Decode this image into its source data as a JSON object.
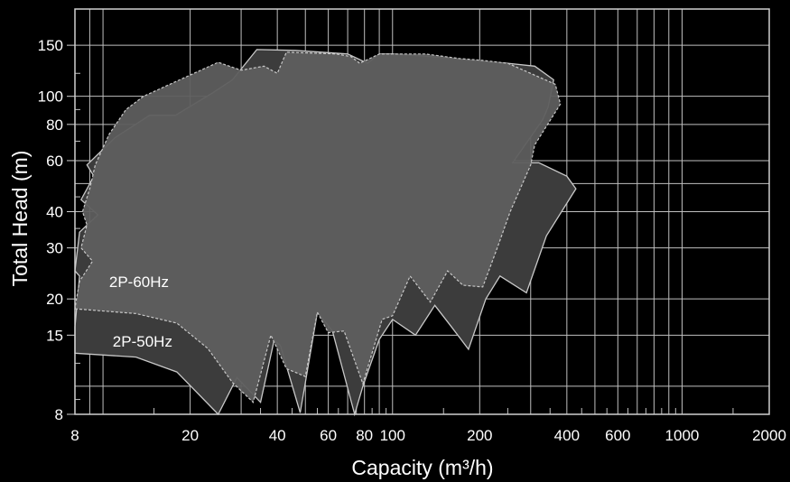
{
  "chart_data": {
    "type": "area",
    "x_scale": "log",
    "y_scale": "log",
    "xlim": [
      8,
      2000
    ],
    "ylim": [
      8,
      200
    ],
    "x_ticks": [
      8,
      20,
      40,
      60,
      80,
      100,
      200,
      400,
      600,
      1000,
      2000
    ],
    "y_ticks": [
      8,
      15,
      20,
      30,
      40,
      60,
      80,
      100,
      150
    ],
    "xlabel": "Capacity (m³/h)",
    "ylabel": "Total Head (m)",
    "grid": true,
    "colors": {
      "background": "#000000",
      "grid": "#bfbfbf",
      "region_50hz_fill": "#3c3c3c",
      "region_60hz_fill": "#5e5e5e",
      "outline": "#c8c8c8"
    },
    "series": [
      {
        "name": "2P-50Hz",
        "outline": [
          [
            8,
            13
          ],
          [
            13,
            12.6
          ],
          [
            18,
            11.2
          ],
          [
            25,
            8
          ],
          [
            29,
            10.7
          ],
          [
            35,
            8.8
          ],
          [
            39,
            14.4
          ],
          [
            41,
            13.8
          ],
          [
            48,
            8.1
          ],
          [
            55,
            18
          ],
          [
            62,
            15.5
          ],
          [
            74,
            8
          ],
          [
            79,
            10
          ],
          [
            90,
            14.5
          ],
          [
            100,
            17
          ],
          [
            120,
            15
          ],
          [
            140,
            19
          ],
          [
            160,
            16
          ],
          [
            183,
            13.4
          ],
          [
            210,
            20
          ],
          [
            235,
            24
          ],
          [
            290,
            21
          ],
          [
            340,
            33
          ],
          [
            430,
            48
          ],
          [
            400,
            53
          ],
          [
            320,
            59
          ],
          [
            260,
            59
          ],
          [
            330,
            83
          ],
          [
            345,
            92
          ],
          [
            360,
            114
          ],
          [
            310,
            127
          ],
          [
            250,
            130
          ],
          [
            200,
            132
          ],
          [
            150,
            136
          ],
          [
            125,
            138
          ],
          [
            100,
            140
          ],
          [
            90,
            140
          ],
          [
            82,
            130
          ],
          [
            70,
            140
          ],
          [
            46,
            144
          ],
          [
            34,
            145
          ],
          [
            28,
            114
          ],
          [
            24,
            103
          ],
          [
            17.8,
            86
          ],
          [
            14.5,
            86
          ],
          [
            11,
            72
          ],
          [
            8.8,
            58
          ],
          [
            9.3,
            53
          ],
          [
            8.4,
            44
          ],
          [
            9.6,
            39
          ],
          [
            8.3,
            34
          ],
          [
            8.0,
            25
          ],
          [
            8.3,
            24
          ],
          [
            8,
            16
          ]
        ]
      },
      {
        "name": "2P-60Hz",
        "outline": [
          [
            8,
            18.5
          ],
          [
            13,
            17.8
          ],
          [
            18,
            16.5
          ],
          [
            23,
            13.5
          ],
          [
            28,
            10.3
          ],
          [
            33,
            8.8
          ],
          [
            38,
            15
          ],
          [
            43,
            11.5
          ],
          [
            50,
            10.8
          ],
          [
            55,
            18
          ],
          [
            60,
            15.3
          ],
          [
            68,
            15.5
          ],
          [
            79,
            10.2
          ],
          [
            92,
            17
          ],
          [
            100,
            17.5
          ],
          [
            115,
            24
          ],
          [
            135,
            19.5
          ],
          [
            155,
            25
          ],
          [
            175,
            22.3
          ],
          [
            205,
            22
          ],
          [
            230,
            30
          ],
          [
            255,
            40
          ],
          [
            300,
            58
          ],
          [
            310,
            68
          ],
          [
            380,
            94
          ],
          [
            365,
            110
          ],
          [
            300,
            120
          ],
          [
            250,
            130
          ],
          [
            205,
            133
          ],
          [
            170,
            135
          ],
          [
            130,
            140
          ],
          [
            100,
            140
          ],
          [
            90,
            140
          ],
          [
            77,
            130
          ],
          [
            72,
            137
          ],
          [
            64,
            140
          ],
          [
            43,
            142
          ],
          [
            40,
            120
          ],
          [
            36,
            127
          ],
          [
            30,
            123
          ],
          [
            25,
            131
          ],
          [
            13.8,
            100
          ],
          [
            12,
            90
          ],
          [
            10.5,
            74
          ],
          [
            9.4,
            58
          ],
          [
            9.0,
            48
          ],
          [
            8.5,
            40
          ],
          [
            8.8,
            36
          ],
          [
            8.4,
            30
          ],
          [
            9.2,
            27
          ],
          [
            8.3,
            23
          ],
          [
            8.1,
            20
          ]
        ]
      }
    ],
    "labels": [
      {
        "text": "2P-60Hz",
        "x": 10.5,
        "y": 22
      },
      {
        "text": "2P-50Hz",
        "x": 10.8,
        "y": 13.7
      }
    ]
  }
}
